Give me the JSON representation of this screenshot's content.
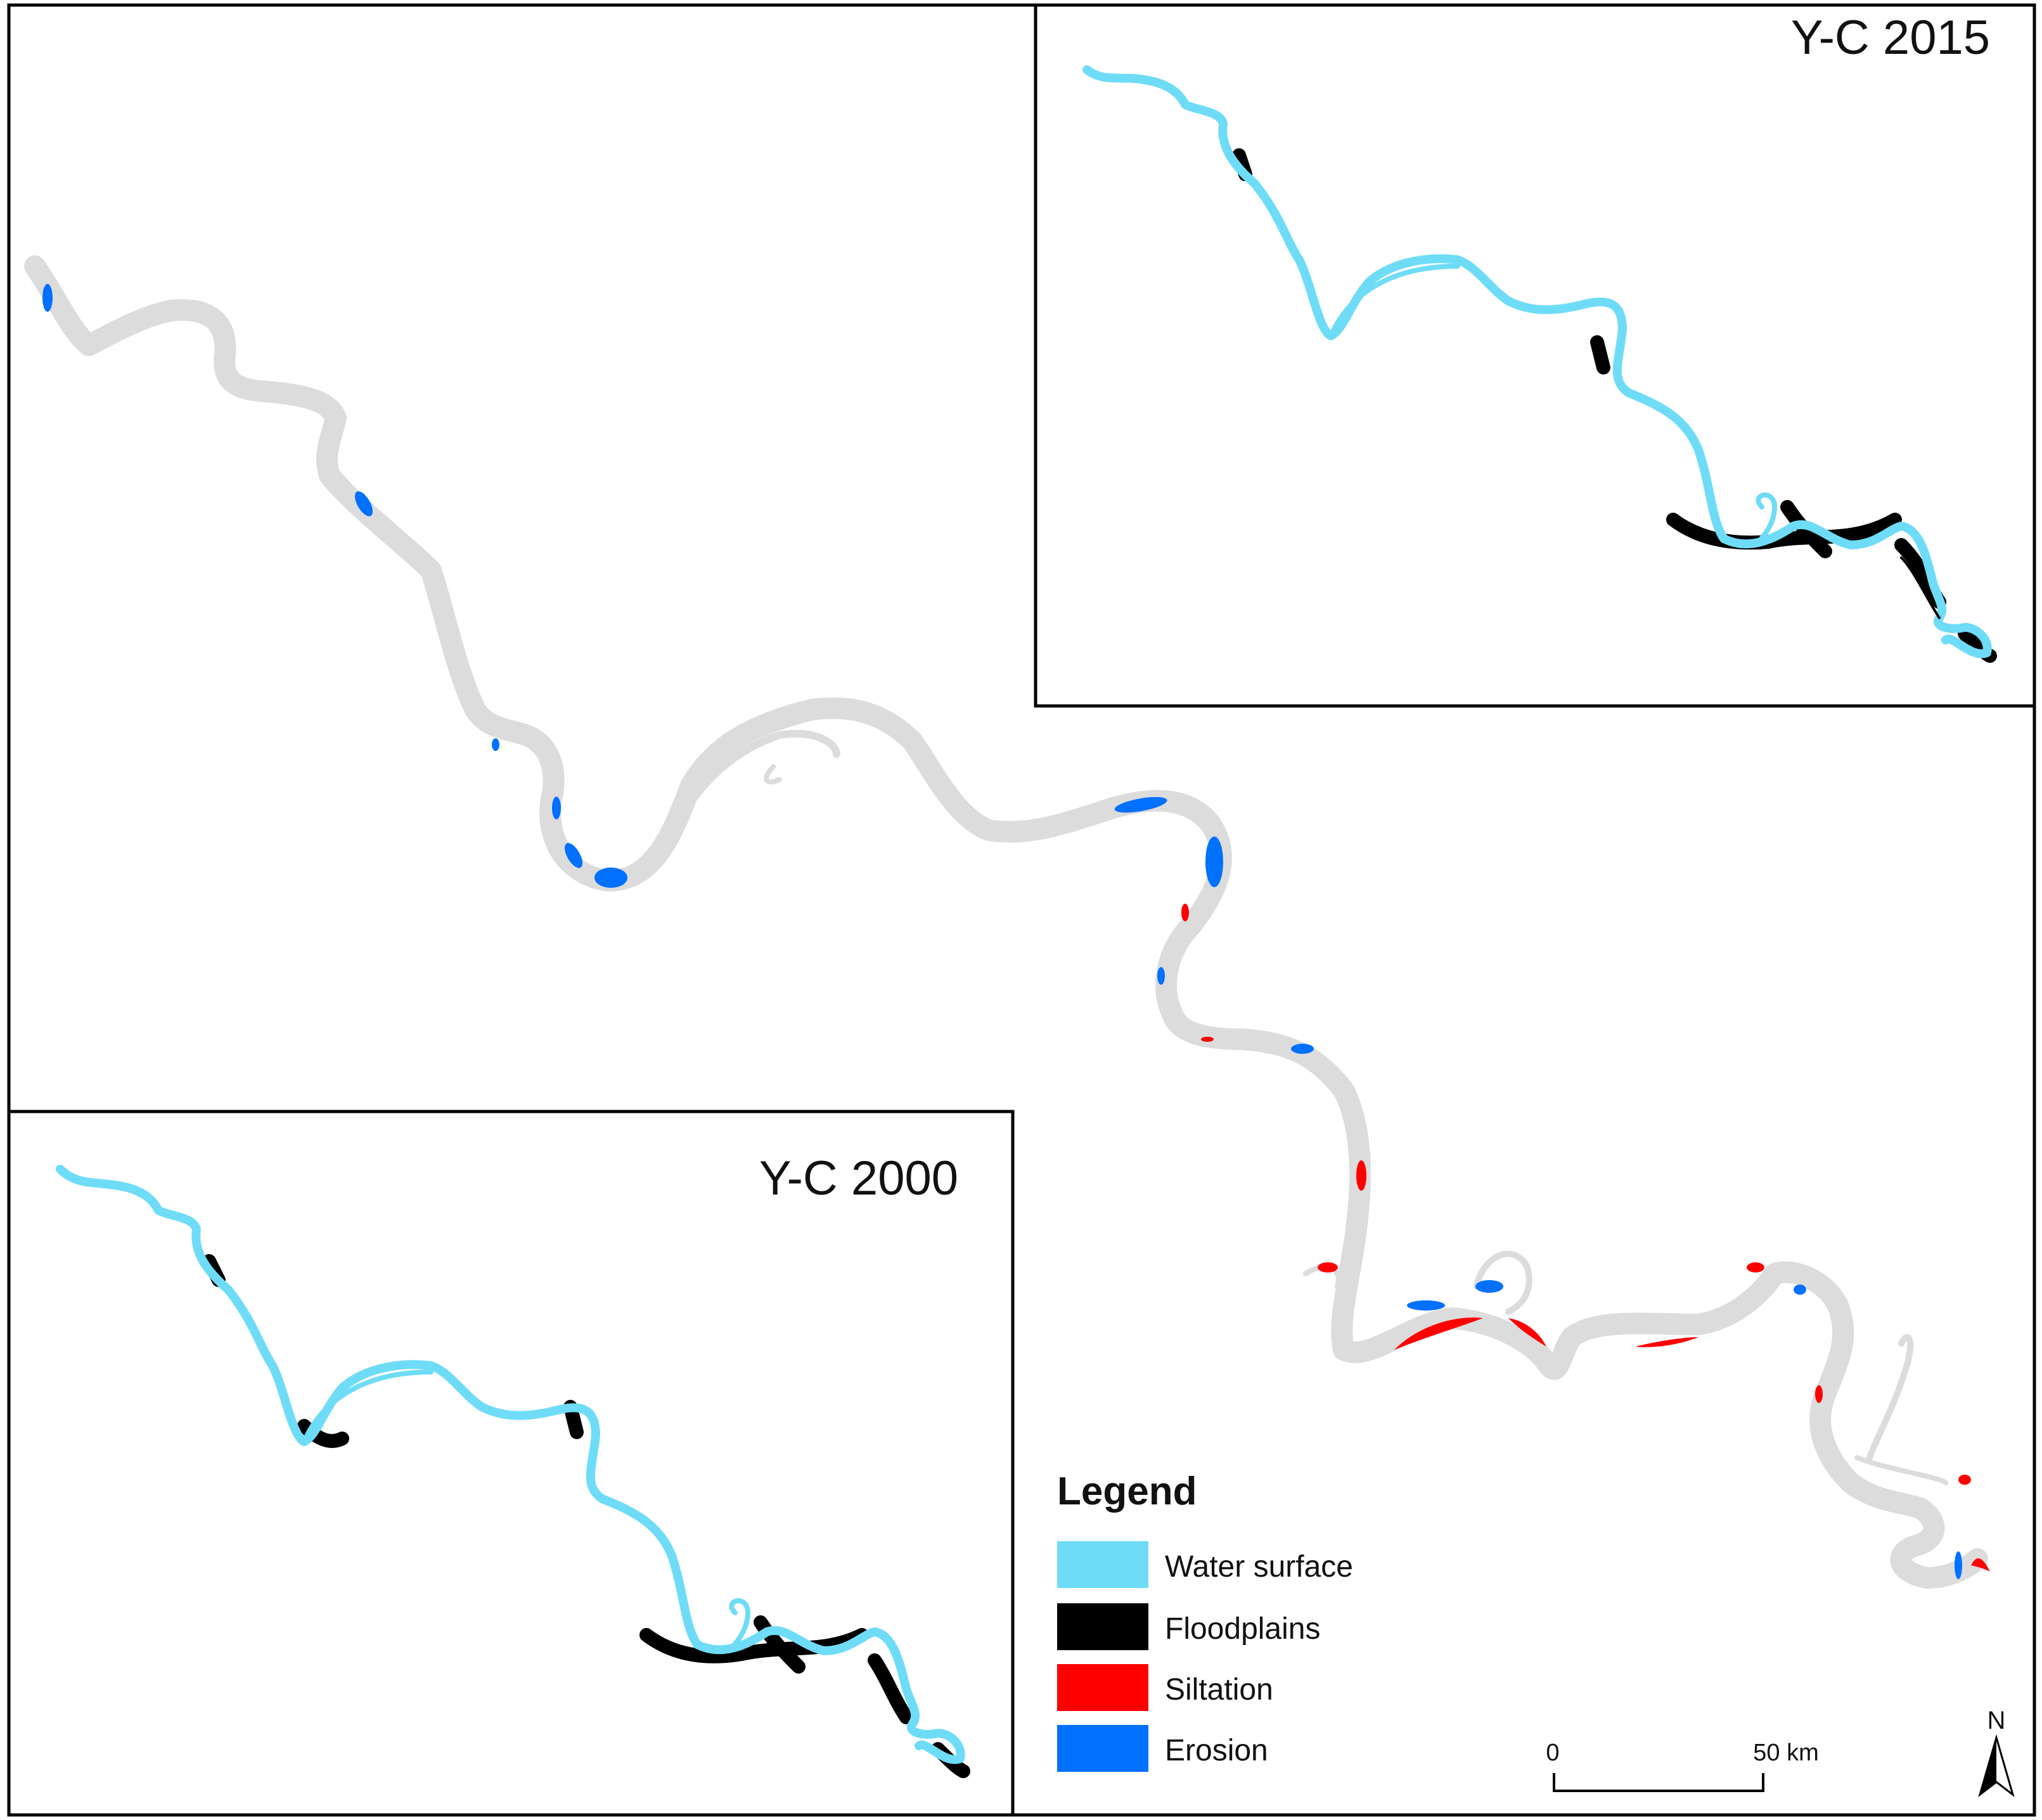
{
  "insets": {
    "top_right": {
      "title": "Y-C 2015"
    },
    "bottom_left": {
      "title": "Y-C 2000"
    }
  },
  "legend": {
    "title": "Legend",
    "items": [
      {
        "label": "Water surface",
        "color": "#6fdcf7"
      },
      {
        "label": "Floodplains",
        "color": "#000000"
      },
      {
        "label": "Siltation",
        "color": "#ff0000"
      },
      {
        "label": "Erosion",
        "color": "#0070ff"
      }
    ]
  },
  "scale_bar": {
    "start_label": "0",
    "end_label": "50 km"
  },
  "north_arrow": {
    "label": "N"
  },
  "colors": {
    "river_outline": "#dcdcdc",
    "water": "#6fdcf7",
    "floodplain": "#000000",
    "siltation": "#ff0000",
    "erosion": "#0070ff",
    "frame": "#000000"
  }
}
